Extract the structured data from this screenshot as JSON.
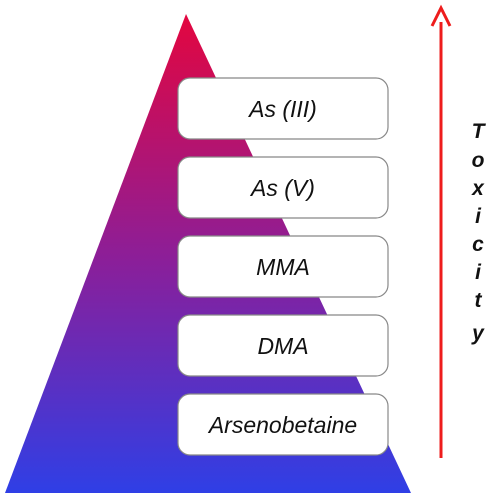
{
  "levels": [
    {
      "label": "As (III)"
    },
    {
      "label": "As (V)"
    },
    {
      "label": "MMA"
    },
    {
      "label": "DMA"
    },
    {
      "label": "Arsenobetaine"
    }
  ],
  "axis": {
    "label": "Toxicity",
    "letters": [
      "T",
      "o",
      "x",
      "i",
      "c",
      "i",
      "t",
      "y"
    ],
    "direction": "up",
    "arrow_color": "#ee1c1c"
  },
  "colors": {
    "pyramid_top": "#e3063f",
    "pyramid_middle": "#8a1f9a",
    "pyramid_bottom": "#2f3fe6",
    "box_fill": "#ffffff",
    "box_border": "#888888"
  }
}
